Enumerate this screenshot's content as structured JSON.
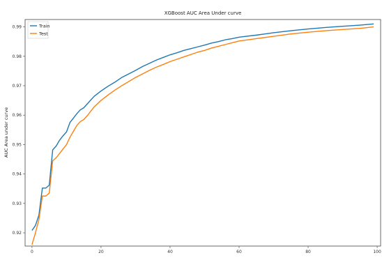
{
  "chart_data": {
    "type": "line",
    "title": "XGBoost AUC Area Under curve",
    "xlabel": "",
    "ylabel": "AUC Area under curve",
    "xlim": [
      -2,
      101
    ],
    "ylim": [
      0.9155,
      0.9925
    ],
    "xticks": [
      0,
      20,
      40,
      60,
      80,
      100
    ],
    "xtick_labels": [
      "0",
      "20",
      "40",
      "60",
      "80",
      "100"
    ],
    "yticks": [
      0.92,
      0.93,
      0.94,
      0.95,
      0.96,
      0.97,
      0.98,
      0.99
    ],
    "ytick_labels": [
      "0.92",
      "0.93",
      "0.94",
      "0.95",
      "0.96",
      "0.97",
      "0.98",
      "0.99"
    ],
    "grid": false,
    "legend_position": "top-left",
    "x": [
      0,
      1,
      2,
      3,
      4,
      5,
      6,
      7,
      8,
      9,
      10,
      11,
      12,
      13,
      14,
      15,
      16,
      18,
      20,
      22,
      24,
      26,
      28,
      30,
      32,
      34,
      36,
      38,
      40,
      42,
      44,
      46,
      48,
      50,
      52,
      54,
      56,
      58,
      60,
      65,
      70,
      75,
      80,
      85,
      90,
      95,
      99
    ],
    "series": [
      {
        "name": "Train",
        "color": "#1f77b4",
        "values": [
          0.9208,
          0.9225,
          0.926,
          0.9352,
          0.9352,
          0.9362,
          0.9482,
          0.9495,
          0.9515,
          0.953,
          0.9543,
          0.9575,
          0.959,
          0.9605,
          0.9618,
          0.9625,
          0.9638,
          0.9664,
          0.9682,
          0.9698,
          0.9712,
          0.9728,
          0.974,
          0.9752,
          0.9765,
          0.9776,
          0.9787,
          0.9796,
          0.9805,
          0.9812,
          0.982,
          0.9826,
          0.9832,
          0.9838,
          0.9845,
          0.985,
          0.9856,
          0.986,
          0.9865,
          0.9872,
          0.988,
          0.9887,
          0.9893,
          0.9898,
          0.9902,
          0.9906,
          0.991
        ]
      },
      {
        "name": "Test",
        "color": "#ff7f0e",
        "values": [
          0.916,
          0.92,
          0.9245,
          0.9325,
          0.9325,
          0.9335,
          0.9445,
          0.9455,
          0.947,
          0.9485,
          0.95,
          0.9525,
          0.9545,
          0.9565,
          0.9578,
          0.9585,
          0.9598,
          0.9628,
          0.965,
          0.9668,
          0.9685,
          0.97,
          0.9714,
          0.9728,
          0.974,
          0.9752,
          0.9763,
          0.9772,
          0.9782,
          0.979,
          0.9798,
          0.9806,
          0.9814,
          0.982,
          0.9828,
          0.9834,
          0.984,
          0.9846,
          0.9852,
          0.986,
          0.9868,
          0.9876,
          0.9882,
          0.9887,
          0.9891,
          0.9895,
          0.99
        ]
      }
    ]
  }
}
